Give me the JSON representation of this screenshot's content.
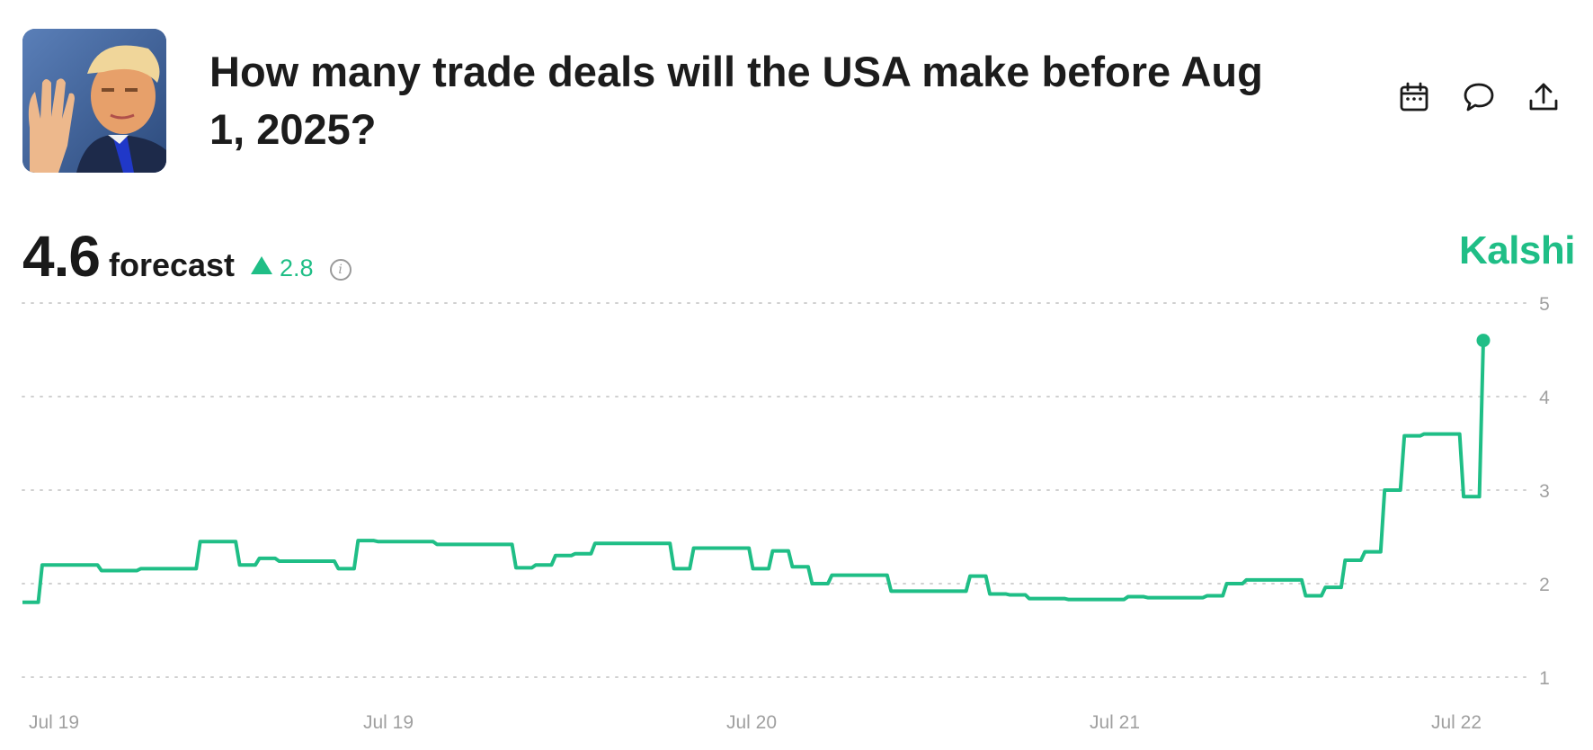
{
  "header": {
    "title": "How many trade deals will the USA make before Aug 1, 2025?",
    "image_alt": "Donald Trump raising hand"
  },
  "actions": {
    "calendar_icon": "calendar-icon",
    "comment_icon": "comment-icon",
    "share_icon": "share-icon"
  },
  "forecast": {
    "value": "4.6",
    "label": "forecast",
    "change": "2.8",
    "change_direction": "up",
    "info_icon": "info-icon"
  },
  "brand": "Kalshi",
  "colors": {
    "accent": "#1fbe86",
    "text": "#1a1a1a",
    "muted": "#9a9a9a",
    "grid": "#d0d0d0"
  },
  "chart_data": {
    "type": "line",
    "step": true,
    "title": "",
    "xlabel": "",
    "ylabel": "",
    "ylim": [
      1,
      5
    ],
    "yticks": [
      "5",
      "4",
      "3",
      "2",
      "1"
    ],
    "xtick_labels": [
      "Jul 19",
      "Jul 19",
      "Jul 20",
      "Jul 21",
      "Jul 22"
    ],
    "grid": true,
    "last_point_marker": true,
    "series": [
      {
        "values": [
          1.8,
          2.2,
          2.2,
          2.2,
          2.14,
          2.14,
          2.16,
          2.16,
          2.16,
          2.45,
          2.45,
          2.2,
          2.27,
          2.24,
          2.24,
          2.24,
          2.16,
          2.46,
          2.45,
          2.45,
          2.45,
          2.42,
          2.42,
          2.42,
          2.42,
          2.17,
          2.2,
          2.3,
          2.32,
          2.43,
          2.43,
          2.43,
          2.43,
          2.16,
          2.38,
          2.38,
          2.38,
          2.16,
          2.35,
          2.18,
          2.0,
          2.09,
          2.09,
          2.09,
          1.92,
          1.92,
          1.92,
          1.92,
          2.08,
          1.89,
          1.88,
          1.84,
          1.84,
          1.83,
          1.83,
          1.83,
          1.86,
          1.85,
          1.85,
          1.85,
          1.87,
          2.0,
          2.04,
          2.04,
          2.04,
          1.87,
          1.96,
          2.25,
          2.34,
          3.0,
          3.58,
          3.6,
          3.6,
          2.93,
          4.6
        ]
      }
    ]
  }
}
